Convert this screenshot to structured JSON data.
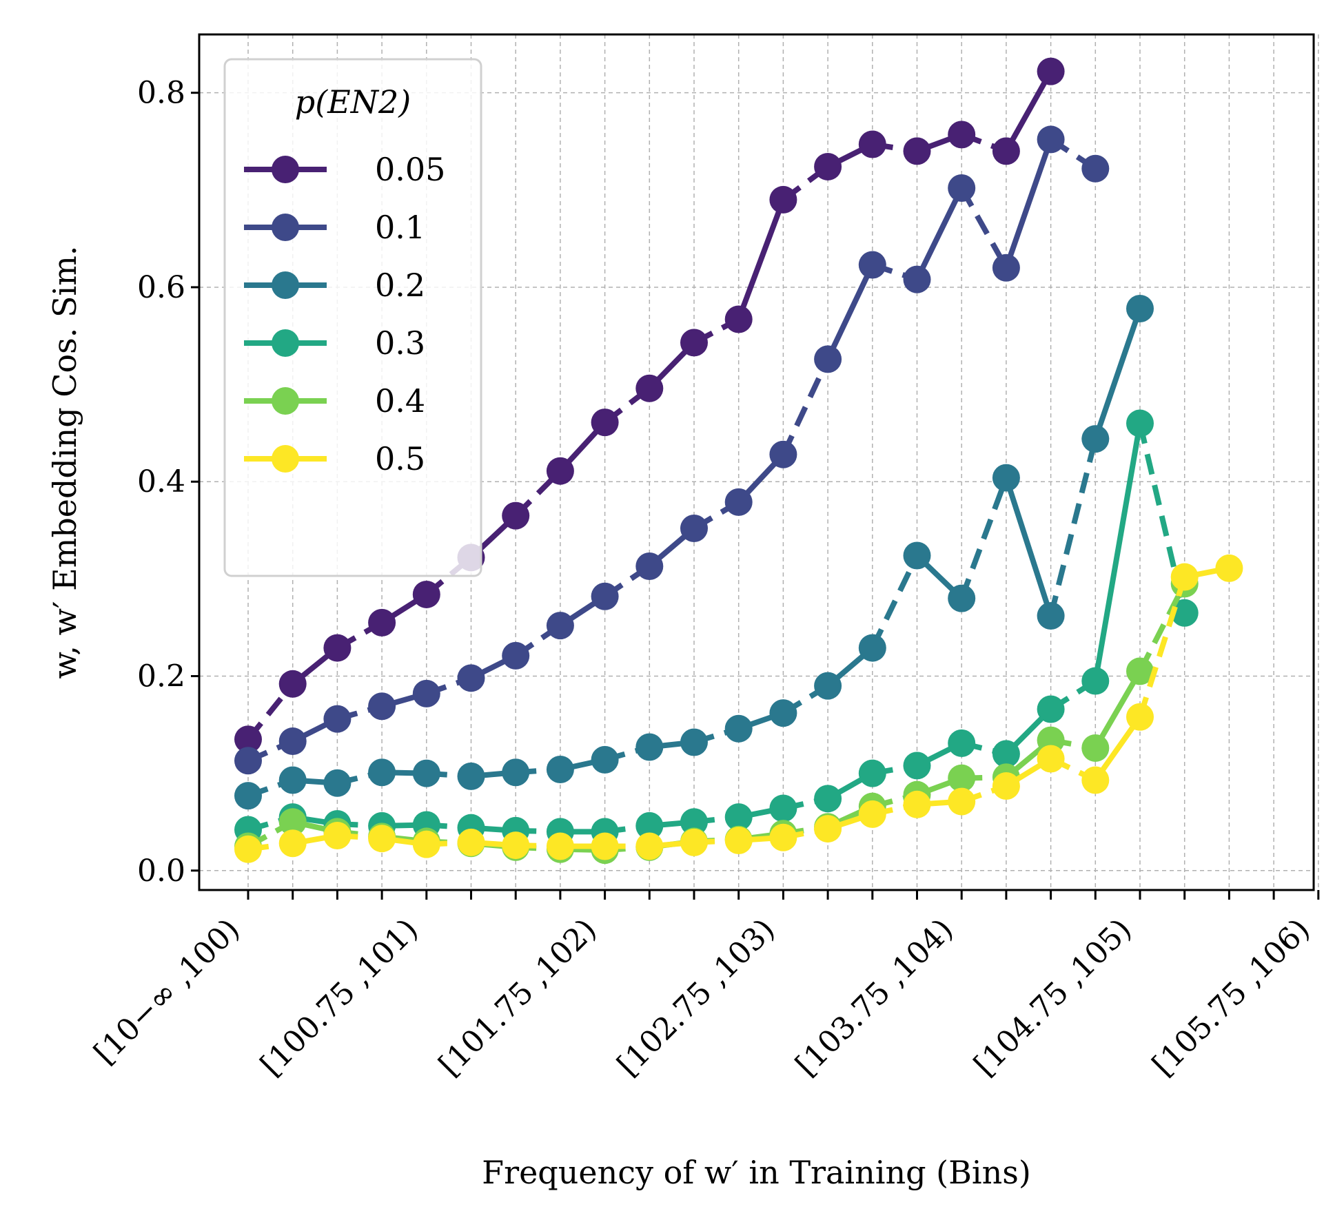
{
  "chart_data": {
    "type": "line",
    "xlabel": "Frequency of w′ in Training (Bins)",
    "ylabel": "w, w′ Embedding Cos. Sim.",
    "ylim": [
      -0.02,
      0.86
    ],
    "yticks": [
      0.0,
      0.2,
      0.4,
      0.6,
      0.8
    ],
    "ytick_labels": [
      "0.0",
      "0.2",
      "0.4",
      "0.6",
      "0.8"
    ],
    "x_bin_count": 25,
    "xtick_labels": [
      {
        "bin": 0,
        "text": "[10−∞ ,100)"
      },
      {
        "bin": 4,
        "text": "[100.75 ,101)"
      },
      {
        "bin": 8,
        "text": "[101.75 ,102)"
      },
      {
        "bin": 12,
        "text": "[102.75 ,103)"
      },
      {
        "bin": 16,
        "text": "[103.75 ,104)"
      },
      {
        "bin": 20,
        "text": "[104.75 ,105)"
      },
      {
        "bin": 24,
        "text": "[105.75 ,106)"
      }
    ],
    "grid": true,
    "legend": {
      "title": "p(EN2)",
      "placement": "top-left"
    },
    "line_style": "dashed segments and solid segments, circle markers",
    "series": [
      {
        "name": "0.05",
        "color": "#482173",
        "values": [
          0.135,
          0.192,
          0.229,
          0.255,
          0.284,
          0.322,
          0.365,
          0.411,
          0.461,
          0.496,
          0.543,
          0.567,
          0.69,
          0.724,
          0.747,
          0.74,
          0.757,
          0.74,
          0.822
        ]
      },
      {
        "name": "0.1",
        "color": "#3e4989",
        "values": [
          0.113,
          0.133,
          0.156,
          0.169,
          0.182,
          0.198,
          0.221,
          0.252,
          0.282,
          0.313,
          0.352,
          0.379,
          0.428,
          0.526,
          0.623,
          0.608,
          0.702,
          0.62,
          0.752,
          0.722
        ]
      },
      {
        "name": "0.2",
        "color": "#2a788e",
        "values": [
          0.077,
          0.093,
          0.09,
          0.101,
          0.1,
          0.097,
          0.101,
          0.104,
          0.114,
          0.127,
          0.132,
          0.146,
          0.162,
          0.19,
          0.229,
          0.324,
          0.28,
          0.404,
          0.262,
          0.444,
          0.578
        ]
      },
      {
        "name": "0.3",
        "color": "#22a884",
        "values": [
          0.042,
          0.055,
          0.048,
          0.046,
          0.047,
          0.044,
          0.041,
          0.04,
          0.04,
          0.046,
          0.05,
          0.055,
          0.064,
          0.074,
          0.1,
          0.108,
          0.131,
          0.12,
          0.166,
          0.195,
          0.46,
          0.265
        ]
      },
      {
        "name": "0.4",
        "color": "#7ad151",
        "values": [
          0.025,
          0.05,
          0.04,
          0.035,
          0.03,
          0.028,
          0.024,
          0.022,
          0.021,
          0.024,
          0.03,
          0.032,
          0.038,
          0.045,
          0.066,
          0.078,
          0.095,
          0.096,
          0.134,
          0.126,
          0.205,
          0.295
        ]
      },
      {
        "name": "0.5",
        "color": "#fde725",
        "values": [
          0.022,
          0.028,
          0.036,
          0.033,
          0.027,
          0.029,
          0.026,
          0.025,
          0.025,
          0.025,
          0.029,
          0.031,
          0.034,
          0.043,
          0.058,
          0.068,
          0.071,
          0.087,
          0.115,
          0.093,
          0.158,
          0.302,
          0.311
        ]
      }
    ]
  }
}
